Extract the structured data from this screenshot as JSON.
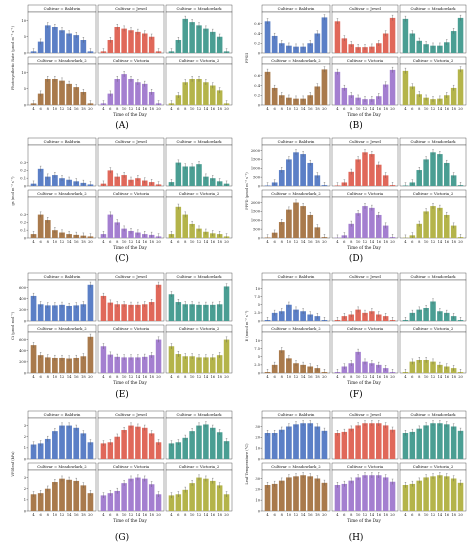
{
  "figure": {
    "x_ticks": [
      "4",
      "6",
      "8",
      "10",
      "12",
      "14",
      "16",
      "18",
      "20"
    ],
    "xlabel": "Time of the Day",
    "cultivars": [
      "Cultivar = Baldwin",
      "Cultivar = Jewel",
      "Cultivar = Meadowlark",
      "Cultivar = Meadowlark_2",
      "Cultivar = Victoria",
      "Cultivar = Victoria_2"
    ],
    "colors": [
      "#5b7fc6",
      "#e0685a",
      "#4a9e93",
      "#a97a4c",
      "#a47fd0",
      "#b4b44a"
    ]
  },
  "chart_data": [
    {
      "type": "bar",
      "letter": "(A)",
      "ylabel": "Photosynthetic Rate (μmol m⁻² s⁻¹)",
      "ylim": [
        0,
        12
      ],
      "yticks": [
        0,
        5,
        10
      ],
      "series": [
        {
          "name": "Cultivar = Baldwin",
          "values": [
            0.5,
            3.5,
            8.5,
            8,
            7,
            6,
            5.5,
            4,
            0.5
          ]
        },
        {
          "name": "Cultivar = Jewel",
          "values": [
            0.5,
            4,
            8,
            7.5,
            7,
            6.5,
            6,
            5,
            0.5
          ]
        },
        {
          "name": "Cultivar = Meadowlark",
          "values": [
            0.5,
            4,
            10.5,
            9.5,
            8.5,
            7.5,
            6.5,
            5,
            0.5
          ]
        },
        {
          "name": "Cultivar = Meadowlark_2",
          "values": [
            0.5,
            3.5,
            8,
            8,
            7.5,
            6.5,
            5.5,
            4,
            0.5
          ]
        },
        {
          "name": "Cultivar = Victoria",
          "values": [
            0.5,
            3.5,
            8,
            9.5,
            8,
            7,
            6.5,
            4,
            0.5
          ]
        },
        {
          "name": "Cultivar = Victoria_2",
          "values": [
            0.5,
            3,
            7,
            8,
            8,
            7,
            6,
            4.5,
            0.5
          ]
        }
      ]
    },
    {
      "type": "bar",
      "letter": "(B)",
      "ylabel": "FPSII",
      "ylim": [
        0,
        0.8
      ],
      "yticks": [
        0,
        0.2,
        0.4,
        0.6
      ],
      "series": [
        {
          "name": "Cultivar = Baldwin",
          "values": [
            0.65,
            0.35,
            0.2,
            0.15,
            0.13,
            0.13,
            0.2,
            0.4,
            0.73
          ]
        },
        {
          "name": "Cultivar = Jewel",
          "values": [
            0.65,
            0.3,
            0.18,
            0.12,
            0.12,
            0.13,
            0.2,
            0.4,
            0.72
          ]
        },
        {
          "name": "Cultivar = Meadowlark",
          "values": [
            0.7,
            0.4,
            0.25,
            0.18,
            0.15,
            0.15,
            0.22,
            0.45,
            0.72
          ]
        },
        {
          "name": "Cultivar = Meadowlark_2",
          "values": [
            0.68,
            0.35,
            0.2,
            0.15,
            0.13,
            0.13,
            0.2,
            0.38,
            0.73
          ]
        },
        {
          "name": "Cultivar = Victoria",
          "values": [
            0.68,
            0.35,
            0.2,
            0.15,
            0.12,
            0.12,
            0.18,
            0.42,
            0.72
          ]
        },
        {
          "name": "Cultivar = Victoria_2",
          "values": [
            0.7,
            0.38,
            0.22,
            0.15,
            0.12,
            0.13,
            0.2,
            0.35,
            0.73
          ]
        }
      ]
    },
    {
      "type": "bar",
      "letter": "(C)",
      "ylabel": "gs (mol m⁻² s⁻¹)",
      "ylim": [
        0,
        0.5
      ],
      "yticks": [
        0,
        0.1,
        0.2,
        0.3
      ],
      "series": [
        {
          "name": "Cultivar = Baldwin",
          "values": [
            0.03,
            0.22,
            0.12,
            0.14,
            0.1,
            0.08,
            0.06,
            0.04,
            0.02
          ]
        },
        {
          "name": "Cultivar = Jewel",
          "values": [
            0.03,
            0.2,
            0.12,
            0.14,
            0.08,
            0.1,
            0.07,
            0.05,
            0.02
          ]
        },
        {
          "name": "Cultivar = Meadowlark",
          "values": [
            0.05,
            0.3,
            0.25,
            0.25,
            0.28,
            0.12,
            0.1,
            0.06,
            0.03
          ]
        },
        {
          "name": "Cultivar = Meadowlark_2",
          "values": [
            0.05,
            0.3,
            0.23,
            0.1,
            0.07,
            0.05,
            0.04,
            0.03,
            0.02
          ]
        },
        {
          "name": "Cultivar = Victoria",
          "values": [
            0.05,
            0.3,
            0.2,
            0.12,
            0.09,
            0.07,
            0.05,
            0.04,
            0.02
          ]
        },
        {
          "name": "Cultivar = Victoria_2",
          "values": [
            0.05,
            0.4,
            0.3,
            0.18,
            0.12,
            0.08,
            0.06,
            0.05,
            0.02
          ]
        }
      ]
    },
    {
      "type": "bar",
      "letter": "(D)",
      "ylabel": "PPFD (μmol m⁻² s⁻¹)",
      "ylim": [
        0,
        2200
      ],
      "yticks": [
        0,
        500,
        1000,
        1500,
        2000
      ],
      "series": [
        {
          "name": "Cultivar = Baldwin",
          "values": [
            30,
            200,
            900,
            1500,
            1900,
            1800,
            1300,
            600,
            50
          ]
        },
        {
          "name": "Cultivar = Jewel",
          "values": [
            30,
            200,
            800,
            1500,
            1900,
            1800,
            1200,
            600,
            50
          ]
        },
        {
          "name": "Cultivar = Meadowlark",
          "values": [
            30,
            200,
            900,
            1500,
            1900,
            1800,
            1300,
            600,
            50
          ]
        },
        {
          "name": "Cultivar = Meadowlark_2",
          "values": [
            30,
            300,
            900,
            1600,
            2000,
            1800,
            1300,
            600,
            50
          ]
        },
        {
          "name": "Cultivar = Victoria",
          "values": [
            20,
            150,
            800,
            1400,
            1800,
            1700,
            1300,
            700,
            50
          ]
        },
        {
          "name": "Cultivar = Victoria_2",
          "values": [
            20,
            150,
            800,
            1500,
            1800,
            1700,
            1300,
            700,
            50
          ]
        }
      ]
    },
    {
      "type": "bar",
      "letter": "(E)",
      "ylabel": "Ci (μmol mol⁻¹)",
      "ylim": [
        0,
        700
      ],
      "yticks": [
        0,
        200,
        400,
        600
      ],
      "series": [
        {
          "name": "Cultivar = Baldwin",
          "values": [
            450,
            300,
            280,
            280,
            290,
            270,
            280,
            300,
            650
          ]
        },
        {
          "name": "Cultivar = Jewel",
          "values": [
            450,
            330,
            300,
            300,
            290,
            290,
            300,
            340,
            650
          ]
        },
        {
          "name": "Cultivar = Meadowlark",
          "values": [
            480,
            340,
            300,
            300,
            290,
            290,
            290,
            300,
            620
          ]
        },
        {
          "name": "Cultivar = Meadowlark_2",
          "values": [
            500,
            320,
            280,
            270,
            270,
            260,
            270,
            300,
            650
          ]
        },
        {
          "name": "Cultivar = Victoria",
          "values": [
            480,
            330,
            290,
            280,
            280,
            280,
            290,
            320,
            600
          ]
        },
        {
          "name": "Cultivar = Victoria_2",
          "values": [
            480,
            340,
            300,
            300,
            280,
            280,
            280,
            320,
            600
          ]
        }
      ]
    },
    {
      "type": "bar",
      "letter": "(F)",
      "ylabel": "E (mmol m⁻² s⁻¹)",
      "ylim": [
        0,
        12
      ],
      "yticks": [
        0,
        2.5,
        5,
        7.5,
        10
      ],
      "series": [
        {
          "name": "Cultivar = Baldwin",
          "values": [
            0.3,
            2.5,
            3,
            5,
            3.5,
            3,
            2,
            1.5,
            0.3
          ]
        },
        {
          "name": "Cultivar = Jewel",
          "values": [
            0.3,
            1.5,
            2,
            3.5,
            2.5,
            3,
            2,
            1.5,
            0.3
          ]
        },
        {
          "name": "Cultivar = Meadowlark",
          "values": [
            0.3,
            2.5,
            3.5,
            4,
            6,
            3,
            2.5,
            1.5,
            0.3
          ]
        },
        {
          "name": "Cultivar = Meadowlark_2",
          "values": [
            0.3,
            2.5,
            7,
            4.5,
            3,
            2.5,
            2,
            1.5,
            0.3
          ]
        },
        {
          "name": "Cultivar = Victoria",
          "values": [
            0.3,
            2,
            3,
            6.5,
            3.5,
            3,
            2.5,
            1.5,
            0.3
          ]
        },
        {
          "name": "Cultivar = Victoria_2",
          "values": [
            0.3,
            3.5,
            4,
            4,
            3.5,
            2.5,
            2,
            1.5,
            0.3
          ]
        }
      ]
    },
    {
      "type": "bar",
      "letter": "(G)",
      "ylabel": "VPDleaf (kPa)",
      "ylim": [
        0,
        3.5
      ],
      "yticks": [
        0,
        1,
        2,
        3
      ],
      "series": [
        {
          "name": "Cultivar = Baldwin",
          "values": [
            1.3,
            1.4,
            1.8,
            2.5,
            3,
            3,
            2.8,
            2.3,
            1.5
          ]
        },
        {
          "name": "Cultivar = Jewel",
          "values": [
            1.4,
            1.5,
            2,
            2.6,
            3,
            2.9,
            2.8,
            2.3,
            1.5
          ]
        },
        {
          "name": "Cultivar = Meadowlark",
          "values": [
            1.4,
            1.5,
            1.9,
            2.5,
            3,
            3.1,
            2.8,
            2.4,
            1.6
          ]
        },
        {
          "name": "Cultivar = Meadowlark_2",
          "values": [
            1.5,
            1.6,
            2,
            2.6,
            2.9,
            2.8,
            2.7,
            2.3,
            1.6
          ]
        },
        {
          "name": "Cultivar = Victoria",
          "values": [
            1.4,
            1.6,
            1.8,
            2.5,
            2.9,
            3,
            2.9,
            2.4,
            1.5
          ]
        },
        {
          "name": "Cultivar = Victoria_2",
          "values": [
            1.4,
            1.5,
            1.9,
            2.5,
            3,
            2.9,
            2.7,
            2.3,
            1.5
          ]
        }
      ]
    },
    {
      "type": "bar",
      "letter": "(H)",
      "ylabel": "Leaf Temperature (°C)",
      "ylim": [
        0,
        36
      ],
      "yticks": [
        0,
        10,
        20,
        30
      ],
      "series": [
        {
          "name": "Cultivar = Baldwin",
          "values": [
            24,
            24,
            27,
            30,
            32,
            33,
            33,
            30,
            26
          ]
        },
        {
          "name": "Cultivar = Jewel",
          "values": [
            24,
            25,
            28,
            31,
            33,
            33,
            33,
            31,
            27
          ]
        },
        {
          "name": "Cultivar = Meadowlark",
          "values": [
            24,
            25,
            28,
            31,
            33,
            33,
            32,
            30,
            26
          ]
        },
        {
          "name": "Cultivar = Meadowlark_2",
          "values": [
            24,
            25,
            28,
            31,
            32,
            33,
            32,
            30,
            26
          ]
        },
        {
          "name": "Cultivar = Victoria",
          "values": [
            24,
            25,
            28,
            31,
            33,
            33,
            33,
            31,
            27
          ]
        },
        {
          "name": "Cultivar = Victoria_2",
          "values": [
            24,
            25,
            28,
            31,
            32,
            33,
            32,
            30,
            26
          ]
        }
      ]
    }
  ]
}
